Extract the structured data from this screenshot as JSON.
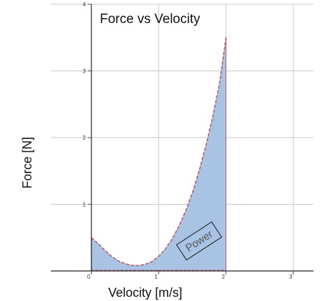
{
  "chart_data": {
    "type": "area",
    "title": "Force vs Velocity",
    "xlabel": "Velocity [m/s]",
    "ylabel": "Force [N]",
    "xlim": [
      -0.6,
      3.3
    ],
    "ylim": [
      0,
      4
    ],
    "grid": true,
    "x_ticks": [
      0,
      1,
      2,
      3
    ],
    "y_ticks": [
      1,
      2,
      3,
      4
    ],
    "x_tick_labels": [
      "0",
      "1",
      "2",
      "3"
    ],
    "y_tick_labels": [
      "1",
      "2",
      "3",
      "4"
    ],
    "fill_range": [
      0,
      2
    ],
    "series": [
      {
        "x": [
          0,
          0.1,
          0.2,
          0.3,
          0.4,
          0.5,
          0.6,
          0.7,
          0.8,
          0.9,
          1.0,
          1.1,
          1.2,
          1.3,
          1.4,
          1.5,
          1.6,
          1.7,
          1.8,
          1.9,
          2.0
        ],
        "values": [
          0.5,
          0.41,
          0.31,
          0.22,
          0.15,
          0.11,
          0.085,
          0.08,
          0.1,
          0.14,
          0.22,
          0.33,
          0.48,
          0.67,
          0.9,
          1.17,
          1.5,
          1.87,
          2.3,
          2.79,
          3.5
        ],
        "line_color": "#b85a6a",
        "fill_color": "#a8c3e3"
      }
    ],
    "annotations": [
      {
        "text": "Power",
        "x": 1.6,
        "y": 0.45,
        "angle": -33
      }
    ]
  }
}
